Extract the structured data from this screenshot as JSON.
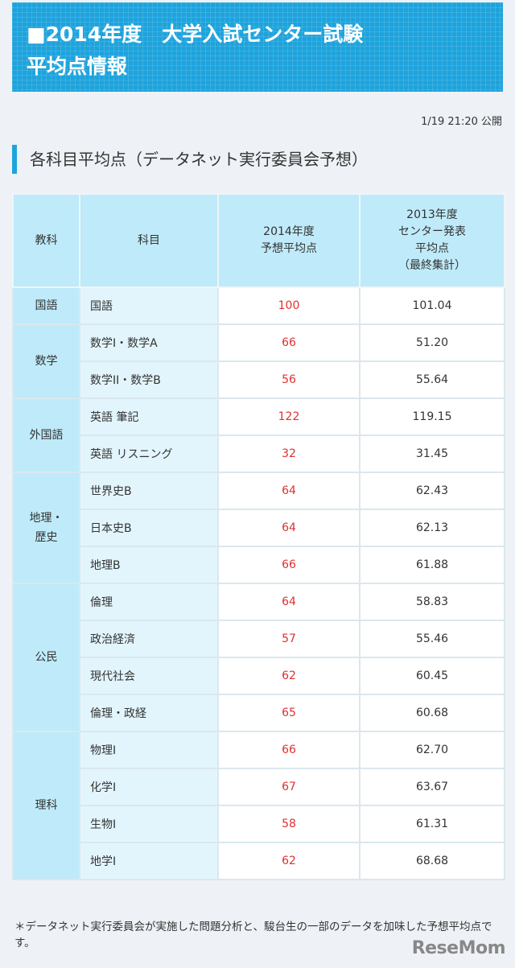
{
  "banner": {
    "line1": "■2014年度　大学入試センター試験",
    "line2": "平均点情報"
  },
  "published": "1/19 21:20 公開",
  "section_title": "各科目平均点（データネット実行委員会予想）",
  "table": {
    "headers": [
      "教科",
      "科目",
      "2014年度\n予想平均点",
      "2013年度\nセンター発表\n平均点\n（最終集計）"
    ],
    "groups": [
      {
        "name": "国語",
        "rows": [
          [
            "国語",
            "100",
            "101.04"
          ]
        ]
      },
      {
        "name": "数学",
        "rows": [
          [
            "数学I・数学A",
            "66",
            "51.20"
          ],
          [
            "数学II・数学B",
            "56",
            "55.64"
          ]
        ]
      },
      {
        "name": "外国語",
        "rows": [
          [
            "英語 筆記",
            "122",
            "119.15"
          ],
          [
            "英語 リスニング",
            "32",
            "31.45"
          ]
        ]
      },
      {
        "name": "地理・\n歴史",
        "rows": [
          [
            "世界史B",
            "64",
            "62.43"
          ],
          [
            "日本史B",
            "64",
            "62.13"
          ],
          [
            "地理B",
            "66",
            "61.88"
          ]
        ]
      },
      {
        "name": "公民",
        "rows": [
          [
            "倫理",
            "64",
            "58.83"
          ],
          [
            "政治経済",
            "57",
            "55.46"
          ],
          [
            "現代社会",
            "62",
            "60.45"
          ],
          [
            "倫理・政経",
            "65",
            "60.68"
          ]
        ]
      },
      {
        "name": "理科",
        "rows": [
          [
            "物理I",
            "66",
            "62.70"
          ],
          [
            "化学I",
            "67",
            "63.67"
          ],
          [
            "生物I",
            "58",
            "61.31"
          ],
          [
            "地学I",
            "62",
            "68.68"
          ]
        ]
      }
    ]
  },
  "note": "＊データネット実行委員会が実施した問題分析と、駿台生の一部のデータを加味した予想平均点です。",
  "logo": "ReseMom",
  "colors": {
    "accent": "#1ea3dc",
    "predicted": "#e03030"
  }
}
